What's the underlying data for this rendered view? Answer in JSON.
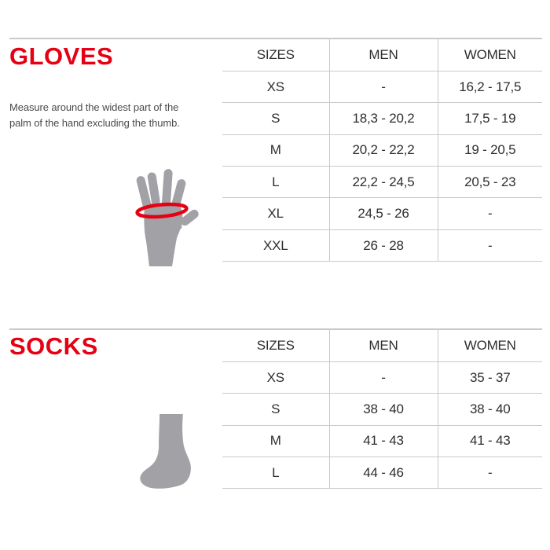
{
  "colors": {
    "accent_red": "#e60014",
    "line_gray": "#c9c9c9",
    "silhouette_gray": "#a1a1a6",
    "text_dark": "#2e2e2e"
  },
  "sections": [
    {
      "title": "GLOVES",
      "description_line1": "Measure around the widest part of the",
      "description_line2": "palm of the hand excluding the thumb.",
      "illustration": "hand-with-measuring-band-icon",
      "table": {
        "headers": [
          "SIZES",
          "MEN",
          "WOMEN"
        ],
        "rows": [
          {
            "size": "XS",
            "men": "-",
            "women": "16,2 - 17,5"
          },
          {
            "size": "S",
            "men": "18,3 - 20,2",
            "women": "17,5 - 19"
          },
          {
            "size": "M",
            "men": "20,2 - 22,2",
            "women": "19 - 20,5"
          },
          {
            "size": "L",
            "men": "22,2 - 24,5",
            "women": "20,5 - 23"
          },
          {
            "size": "XL",
            "men": "24,5 - 26",
            "women": "-"
          },
          {
            "size": "XXL",
            "men": "26 - 28",
            "women": "-"
          }
        ]
      }
    },
    {
      "title": "SOCKS",
      "illustration": "sock-icon",
      "table": {
        "headers": [
          "SIZES",
          "MEN",
          "WOMEN"
        ],
        "rows": [
          {
            "size": "XS",
            "men": "-",
            "women": "35 - 37"
          },
          {
            "size": "S",
            "men": "38 - 40",
            "women": "38 - 40"
          },
          {
            "size": "M",
            "men": "41 - 43",
            "women": "41 - 43"
          },
          {
            "size": "L",
            "men": "44 - 46",
            "women": "-"
          }
        ]
      }
    }
  ]
}
